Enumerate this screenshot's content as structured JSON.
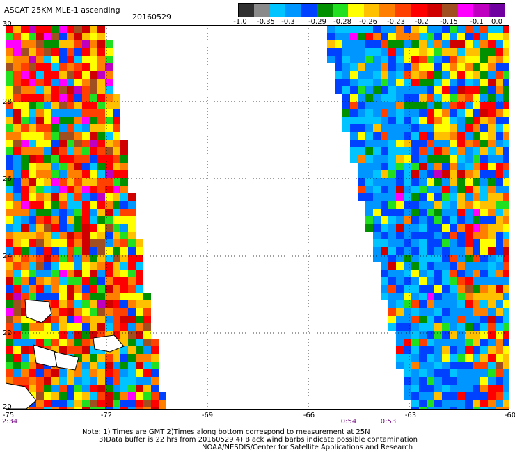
{
  "header": {
    "title": "ASCAT 25KM MLE-1 ascending",
    "date": "20160529"
  },
  "colorbar": {
    "colors": [
      "#303030",
      "#8a8a8a",
      "#00c4ff",
      "#0096ff",
      "#0040ff",
      "#009000",
      "#20e020",
      "#ffff00",
      "#ffc000",
      "#ff8000",
      "#ff4000",
      "#ff0000",
      "#d00000",
      "#a05020",
      "#ff00ff",
      "#c000c0",
      "#7000a0"
    ],
    "tick_labels": [
      "-1.0",
      "-0.35",
      "-0.3",
      "-0.29",
      "-0.28",
      "-0.26",
      "-0.23",
      "-0.2",
      "-0.15",
      "-0.1",
      "0.0"
    ]
  },
  "map": {
    "lat_labels": [
      "30",
      "28",
      "26",
      "24",
      "22",
      "20"
    ],
    "lon_labels": [
      "-75",
      "-72",
      "-69",
      "-66",
      "-63",
      "-60"
    ],
    "time_labels": [
      "2:34",
      "0:54",
      "0:53"
    ]
  },
  "notes": {
    "line1": "Note: 1) Times are GMT 2)Times along bottom correspond to measurement at 25N",
    "line2": "3)Data buffer is 22 hrs from 20160529 4) Black wind barbs indicate possible contamination",
    "line3": "NOAA/NESDIS/Center for Satellite Applications and Research"
  }
}
